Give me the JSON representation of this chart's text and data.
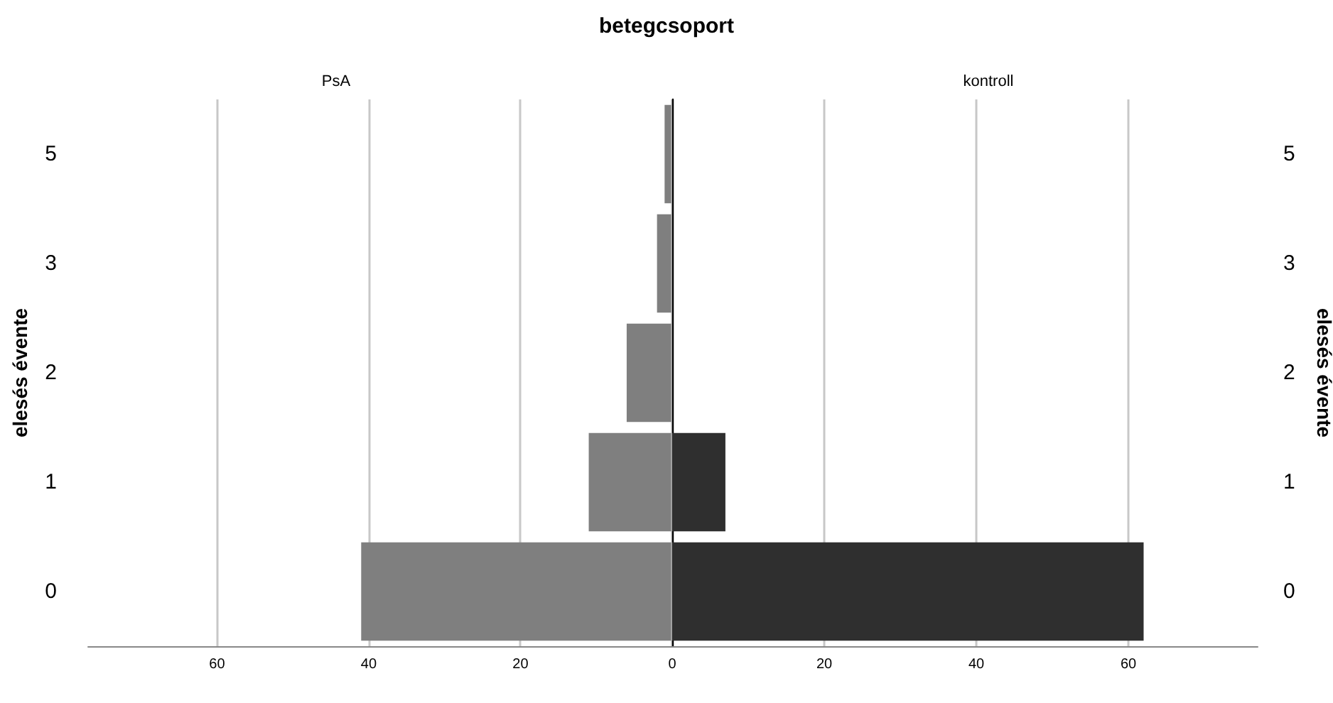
{
  "chart_data": [
    {
      "type": "bar",
      "orientation": "horizontal",
      "title": "betegcsoport",
      "subtitle": "PsA",
      "ylabel": "elesés évente",
      "categories": [
        "5",
        "3",
        "2",
        "1",
        "0"
      ],
      "series": [
        {
          "color": "#7f7f7f",
          "values": [
            1,
            2,
            6,
            11,
            41
          ]
        }
      ],
      "xlim": [
        77,
        0
      ],
      "xticks": [
        60,
        40,
        20,
        {
          "value": 0,
          "label": null
        }
      ],
      "grid": "x"
    },
    {
      "type": "bar",
      "orientation": "horizontal",
      "subtitle": "kontroll",
      "y2label": "elesés évente",
      "categories": [
        "5",
        "3",
        "2",
        "1",
        "0"
      ],
      "series": [
        {
          "color": "#2f2f2f",
          "values": [
            0,
            0,
            0,
            7,
            62
          ]
        }
      ],
      "xlim": [
        0,
        77
      ],
      "xticks": [
        0,
        20,
        40,
        60
      ],
      "grid": "x"
    }
  ]
}
